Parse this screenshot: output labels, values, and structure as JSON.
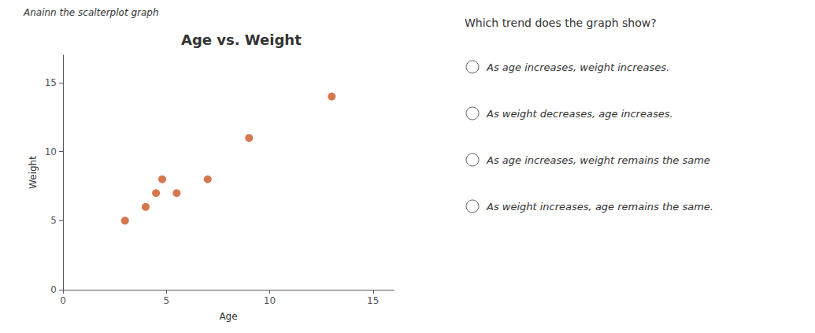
{
  "chart_data": {
    "type": "scatter",
    "title": "Age vs. Weight",
    "xlabel": "Age",
    "ylabel": "Weight",
    "x": [
      3,
      4,
      4.5,
      4.8,
      5.5,
      7,
      9,
      13
    ],
    "values": [
      5,
      6,
      7,
      8,
      7,
      8,
      11,
      14
    ],
    "color": "#cc5522",
    "xlim": [
      0,
      16
    ],
    "xticks": [
      0,
      5,
      10,
      15
    ],
    "ylim": [
      0,
      17
    ],
    "yticks": [
      0,
      5,
      10,
      15
    ],
    "grid": false,
    "annotations": [
      "Anainn the scalterplot graph",
      "Which trend does the graph show?",
      "As age increases, weight increases.",
      "As weight decreases, age increases.",
      "As age increases, weight remains the same",
      "As weight increases, age remains the same."
    ]
  }
}
